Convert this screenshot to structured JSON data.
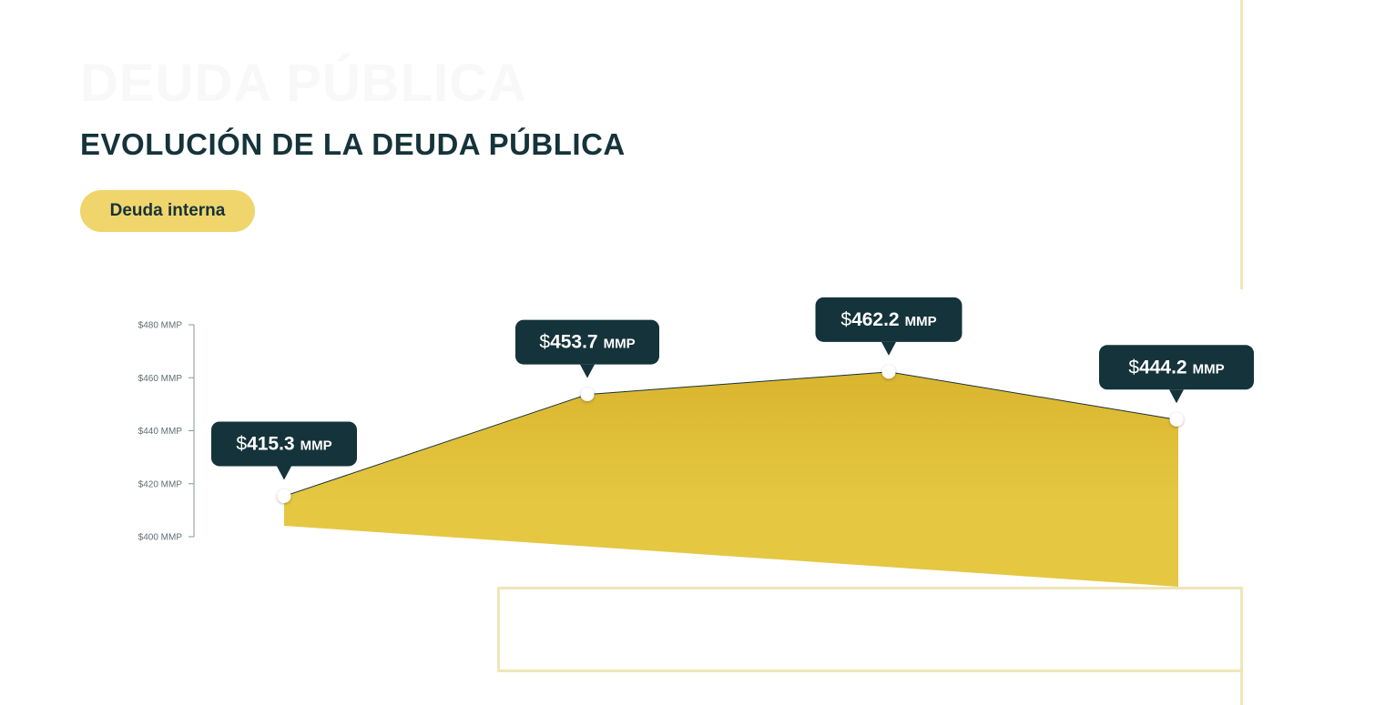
{
  "page": {
    "background_title": "DEUDA PÚBLICA",
    "title": "EVOLUCIÓN DE LA DEUDA PÚBLICA",
    "filter_button": "Deuda interna"
  },
  "colors": {
    "dark": "#15333a",
    "accent": "#f0d56d",
    "area_top": "#dab52e",
    "area_bottom": "#e5c742",
    "decor_line": "#efe6b8"
  },
  "chart_data": {
    "type": "area",
    "ylim": [
      400,
      480
    ],
    "y_ticks": [
      {
        "value": 400,
        "label": "$400 MMP"
      },
      {
        "value": 420,
        "label": "$420 MMP"
      },
      {
        "value": 440,
        "label": "$440 MMP"
      },
      {
        "value": 460,
        "label": "$460 MMP"
      },
      {
        "value": 480,
        "label": "$480 MMP"
      }
    ],
    "points": [
      {
        "value": 415.3,
        "currency": "$",
        "number": "415.3",
        "unit": "MMP"
      },
      {
        "value": 453.7,
        "currency": "$",
        "number": "453.7",
        "unit": "MMP"
      },
      {
        "value": 462.2,
        "currency": "$",
        "number": "462.2",
        "unit": "MMP"
      },
      {
        "value": 444.2,
        "currency": "$",
        "number": "444.2",
        "unit": "MMP"
      }
    ],
    "grid": false,
    "legend": "none"
  }
}
